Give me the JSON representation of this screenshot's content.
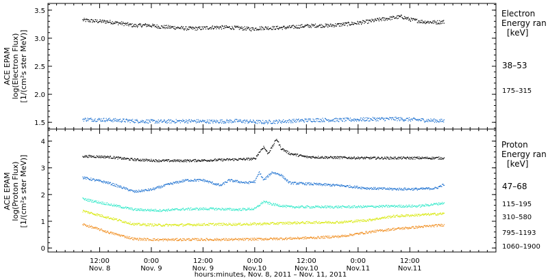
{
  "chart_data": [
    {
      "type": "scatter",
      "panel": "electron",
      "ylabel": [
        "ACE EPAM",
        "log(Electron Flux)",
        "[1/(cm²s ster MeV)]"
      ],
      "ylim": [
        1.38,
        3.62
      ],
      "yticks": [
        1.5,
        2.0,
        2.5,
        3.0,
        3.5
      ],
      "ytick_labels": [
        "1.5",
        "2.0",
        "2.5",
        "3.0",
        "3.5"
      ],
      "legend_title": [
        "Electron",
        "Energy ran",
        "[keV]"
      ],
      "series": [
        {
          "name": "38–53",
          "color": "#000000",
          "points": [
            [
              0,
              3.33
            ],
            [
              3,
              3.31
            ],
            [
              6,
              3.3
            ],
            [
              9,
              3.27
            ],
            [
              12,
              3.23
            ],
            [
              15,
              3.24
            ],
            [
              18,
              3.21
            ],
            [
              21,
              3.2
            ],
            [
              24,
              3.18
            ],
            [
              27,
              3.18
            ],
            [
              30,
              3.2
            ],
            [
              33,
              3.2
            ],
            [
              36,
              3.19
            ],
            [
              39,
              3.17
            ],
            [
              42,
              3.19
            ],
            [
              45,
              3.19
            ],
            [
              48,
              3.2
            ],
            [
              51,
              3.22
            ],
            [
              54,
              3.23
            ],
            [
              57,
              3.23
            ],
            [
              60,
              3.25
            ],
            [
              63,
              3.27
            ],
            [
              66,
              3.3
            ],
            [
              69,
              3.34
            ],
            [
              72,
              3.37
            ],
            [
              74,
              3.39
            ],
            [
              76,
              3.34
            ],
            [
              79,
              3.3
            ],
            [
              82,
              3.29
            ],
            [
              84,
              3.3
            ]
          ]
        },
        {
          "name": "175–315",
          "color": "#1a6fd0",
          "points": [
            [
              0,
              1.56
            ],
            [
              6,
              1.55
            ],
            [
              12,
              1.53
            ],
            [
              18,
              1.52
            ],
            [
              24,
              1.53
            ],
            [
              30,
              1.52
            ],
            [
              36,
              1.53
            ],
            [
              42,
              1.51
            ],
            [
              48,
              1.53
            ],
            [
              54,
              1.55
            ],
            [
              60,
              1.55
            ],
            [
              66,
              1.56
            ],
            [
              72,
              1.57
            ],
            [
              78,
              1.55
            ],
            [
              84,
              1.53
            ]
          ]
        }
      ]
    },
    {
      "type": "scatter",
      "panel": "proton",
      "ylabel": [
        "ACE EPAM",
        "log(Proton Flux)",
        "[1/(cm²s ster MeV)]"
      ],
      "ylim": [
        -0.15,
        4.45
      ],
      "yticks": [
        0,
        1,
        2,
        3,
        4
      ],
      "ytick_labels": [
        "0",
        "1",
        "2",
        "3",
        "4"
      ],
      "legend_title": [
        "Proton",
        "Energy ran",
        "[keV]"
      ],
      "series": [
        {
          "name": "47–68",
          "color": "#000000",
          "points": [
            [
              0,
              3.45
            ],
            [
              6,
              3.42
            ],
            [
              12,
              3.32
            ],
            [
              18,
              3.28
            ],
            [
              24,
              3.28
            ],
            [
              30,
              3.3
            ],
            [
              36,
              3.33
            ],
            [
              40,
              3.35
            ],
            [
              41,
              3.6
            ],
            [
              42,
              3.8
            ],
            [
              43,
              3.55
            ],
            [
              44,
              3.8
            ],
            [
              45,
              4.1
            ],
            [
              46,
              3.75
            ],
            [
              48,
              3.55
            ],
            [
              52,
              3.42
            ],
            [
              58,
              3.4
            ],
            [
              66,
              3.38
            ],
            [
              74,
              3.38
            ],
            [
              84,
              3.38
            ]
          ]
        },
        {
          "name": "115–195",
          "color": "#1a6fd0",
          "points": [
            [
              0,
              2.65
            ],
            [
              6,
              2.45
            ],
            [
              12,
              2.12
            ],
            [
              16,
              2.2
            ],
            [
              20,
              2.4
            ],
            [
              24,
              2.55
            ],
            [
              28,
              2.55
            ],
            [
              32,
              2.35
            ],
            [
              34,
              2.55
            ],
            [
              38,
              2.45
            ],
            [
              40,
              2.5
            ],
            [
              41,
              2.85
            ],
            [
              42,
              2.55
            ],
            [
              44,
              2.85
            ],
            [
              46,
              2.75
            ],
            [
              48,
              2.45
            ],
            [
              54,
              2.4
            ],
            [
              60,
              2.35
            ],
            [
              66,
              2.25
            ],
            [
              72,
              2.22
            ],
            [
              78,
              2.22
            ],
            [
              82,
              2.25
            ],
            [
              84,
              2.4
            ]
          ]
        },
        {
          "name": "310–580",
          "color": "#2ee8c8",
          "points": [
            [
              0,
              1.85
            ],
            [
              6,
              1.65
            ],
            [
              12,
              1.45
            ],
            [
              18,
              1.42
            ],
            [
              24,
              1.47
            ],
            [
              30,
              1.48
            ],
            [
              36,
              1.45
            ],
            [
              40,
              1.48
            ],
            [
              42,
              1.75
            ],
            [
              44,
              1.65
            ],
            [
              48,
              1.55
            ],
            [
              54,
              1.55
            ],
            [
              60,
              1.55
            ],
            [
              66,
              1.56
            ],
            [
              72,
              1.58
            ],
            [
              78,
              1.58
            ],
            [
              84,
              1.7
            ]
          ]
        },
        {
          "name": "795–1193",
          "color": "#d8e80a",
          "points": [
            [
              0,
              1.4
            ],
            [
              6,
              1.15
            ],
            [
              12,
              0.9
            ],
            [
              18,
              0.87
            ],
            [
              24,
              0.88
            ],
            [
              30,
              0.9
            ],
            [
              36,
              0.9
            ],
            [
              42,
              0.92
            ],
            [
              48,
              0.95
            ],
            [
              54,
              0.97
            ],
            [
              60,
              0.98
            ],
            [
              66,
              1.05
            ],
            [
              72,
              1.2
            ],
            [
              78,
              1.25
            ],
            [
              84,
              1.3
            ]
          ]
        },
        {
          "name": "1060–1900",
          "color": "#f08c1c",
          "points": [
            [
              0,
              0.9
            ],
            [
              6,
              0.6
            ],
            [
              12,
              0.35
            ],
            [
              18,
              0.32
            ],
            [
              24,
              0.33
            ],
            [
              30,
              0.33
            ],
            [
              36,
              0.33
            ],
            [
              42,
              0.35
            ],
            [
              48,
              0.37
            ],
            [
              54,
              0.4
            ],
            [
              60,
              0.45
            ],
            [
              66,
              0.6
            ],
            [
              72,
              0.72
            ],
            [
              78,
              0.8
            ],
            [
              84,
              0.88
            ]
          ]
        }
      ]
    }
  ],
  "x_axis": {
    "range_hours": [
      -8,
      96
    ],
    "major_ticks": [
      {
        "hour": 4,
        "line1": "12:00",
        "line2": "Nov. 8"
      },
      {
        "hour": 16,
        "line1": "0:00",
        "line2": "Nov. 9"
      },
      {
        "hour": 28,
        "line1": "12:00",
        "line2": "Nov. 9"
      },
      {
        "hour": 40,
        "line1": "0:00",
        "line2": "Nov.10"
      },
      {
        "hour": 52,
        "line1": "12:00",
        "line2": "Nov.10"
      },
      {
        "hour": 64,
        "line1": "0:00",
        "line2": "Nov.11"
      },
      {
        "hour": 76,
        "line1": "12:00",
        "line2": "Nov.11"
      }
    ],
    "label": "hours:minutes,  Nov.  8, 2011 – Nov. 11, 2011"
  },
  "colors": {
    "axis": "#000000",
    "background": "#ffffff"
  }
}
